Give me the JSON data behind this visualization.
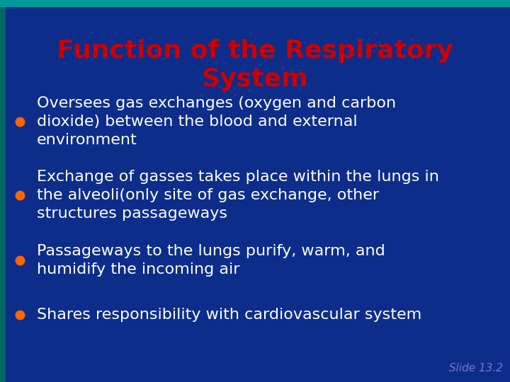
{
  "title_line1": "Function of the Respiratory",
  "title_line2": "System",
  "title_color": "#cc0000",
  "title_fontsize": 26,
  "background_color": "#0d2d8a",
  "text_color": "#ffffff",
  "bullet_color": "#ff6600",
  "slide_label": "Slide 13.2",
  "slide_label_color": "#7777cc",
  "top_bar_color": "#009999",
  "left_bar_color": "#006666",
  "bullet_points": [
    "Oversees gas exchanges (oxygen and carbon\ndioxide) between the blood and external\nenvironment",
    "Exchange of gasses takes place within the lungs in\nthe alveoli(only site of gas exchange, other\nstructures passageways",
    "Passageways to the lungs purify, warm, and\nhumidify the incoming air",
    "Shares responsibility with cardiovascular system"
  ],
  "bullet_fontsize": 16,
  "body_font": "DejaVu Sans",
  "figsize": [
    7.2,
    5.4
  ],
  "dpi": 100
}
